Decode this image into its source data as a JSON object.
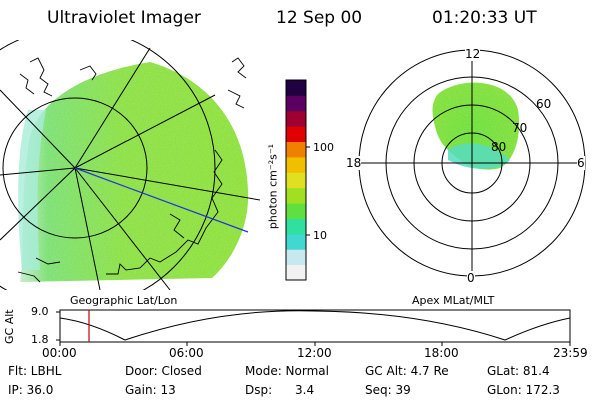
{
  "header": {
    "instrument": "Ultraviolet Imager",
    "date": "12 Sep 00",
    "time": "01:20:33 UT"
  },
  "colorbar": {
    "unit_label": "photon cm⁻²s⁻¹",
    "tick_100": "100",
    "tick_10": "10",
    "colors": [
      "#f2f2f2",
      "#c8e8ef",
      "#40d8d0",
      "#30e0a0",
      "#60e040",
      "#a0e020",
      "#e0e020",
      "#f0c000",
      "#f08000",
      "#e00000",
      "#a00030",
      "#5a0060",
      "#200040"
    ]
  },
  "left_panel": {
    "caption": "Geographic Lat/Lon"
  },
  "right_panel": {
    "caption": "Apex MLat/MLT",
    "mlt_labels": {
      "top": "12",
      "left": "18",
      "right": "6",
      "bottom": "0"
    },
    "lat_labels": [
      "60",
      "70",
      "80"
    ]
  },
  "timeline": {
    "axis_label": "GC Alt",
    "y_labels": [
      "9.0",
      "1.8"
    ],
    "x_labels": [
      "00:00",
      "06:00",
      "12:00",
      "18:00",
      "23:59"
    ],
    "marker_color": "#cc0000"
  },
  "footer": {
    "flt": "Flt: LBHL",
    "door": "Door: Closed",
    "mode": "Mode: Normal",
    "gc_alt": "GC Alt: 4.7 Re",
    "glat": "GLat:  81.4",
    "ip": "IP: 36.0",
    "gain": "Gain: 13",
    "dsp": "Dsp:      3.4",
    "seq": "Seq: 39",
    "glon": "GLon: 172.3"
  }
}
